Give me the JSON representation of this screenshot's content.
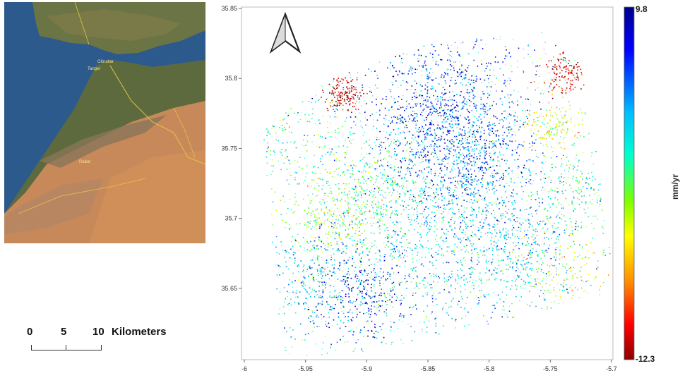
{
  "inset_map": {
    "city_labels": [
      "Tanger",
      "Gibraltar",
      "Rabat"
    ],
    "colors": {
      "sea": "#2d5a8c",
      "land_north": "#5b6a3a",
      "desert": "#c98a55",
      "border": "#e0c44a"
    }
  },
  "scale_bar": {
    "ticks": [
      "0",
      "5",
      "10"
    ],
    "unit": "Kilometers"
  },
  "north_arrow": {
    "icon": "north-arrow-icon"
  },
  "chart_data": {
    "type": "scatter",
    "xlim": [
      -6.0,
      -5.7
    ],
    "ylim": [
      35.6,
      35.85
    ],
    "x_ticks": [
      "-6",
      "-5.95",
      "-5.9",
      "-5.85",
      "-5.8",
      "-5.75",
      "-5.7"
    ],
    "y_ticks": [
      "35.65",
      "35.7",
      "35.75",
      "35.8",
      "35.85"
    ],
    "colorbar": {
      "max_label": "9.8",
      "min_label": "-12.3",
      "unit": "mm/yr",
      "max": 9.8,
      "min": -12.3,
      "colors": [
        "#00008b",
        "#0000ff",
        "#00bfff",
        "#00ffcc",
        "#7fff00",
        "#ffff00",
        "#ff8c00",
        "#ff0000",
        "#8b0000"
      ]
    },
    "clusters": [
      {
        "x": -5.84,
        "y": 35.775,
        "spread": 0.035,
        "value": 6.5,
        "count": 900
      },
      {
        "x": -5.82,
        "y": 35.74,
        "spread": 0.03,
        "value": 5.0,
        "count": 700
      },
      {
        "x": -5.92,
        "y": 35.79,
        "spread": 0.008,
        "value": -11.0,
        "count": 160
      },
      {
        "x": -5.735,
        "y": 35.805,
        "spread": 0.01,
        "value": -10.5,
        "count": 170
      },
      {
        "x": -5.75,
        "y": 35.765,
        "spread": 0.012,
        "value": -3.0,
        "count": 150
      },
      {
        "x": -5.93,
        "y": 35.7,
        "spread": 0.02,
        "value": -2.0,
        "count": 250
      },
      {
        "x": -5.89,
        "y": 35.725,
        "spread": 0.02,
        "value": 1.0,
        "count": 260
      },
      {
        "x": -5.94,
        "y": 35.655,
        "spread": 0.025,
        "value": 4.0,
        "count": 380
      },
      {
        "x": -5.85,
        "y": 35.675,
        "spread": 0.04,
        "value": 3.0,
        "count": 650
      },
      {
        "x": -5.78,
        "y": 35.68,
        "spread": 0.03,
        "value": 3.5,
        "count": 450
      },
      {
        "x": -5.74,
        "y": 35.66,
        "spread": 0.015,
        "value": -3.5,
        "count": 120
      },
      {
        "x": -5.96,
        "y": 35.76,
        "spread": 0.025,
        "value": 1.5,
        "count": 200
      },
      {
        "x": -5.9,
        "y": 35.64,
        "spread": 0.02,
        "value": 7.5,
        "count": 220
      },
      {
        "x": -5.73,
        "y": 35.72,
        "spread": 0.02,
        "value": 0.5,
        "count": 180
      }
    ]
  }
}
